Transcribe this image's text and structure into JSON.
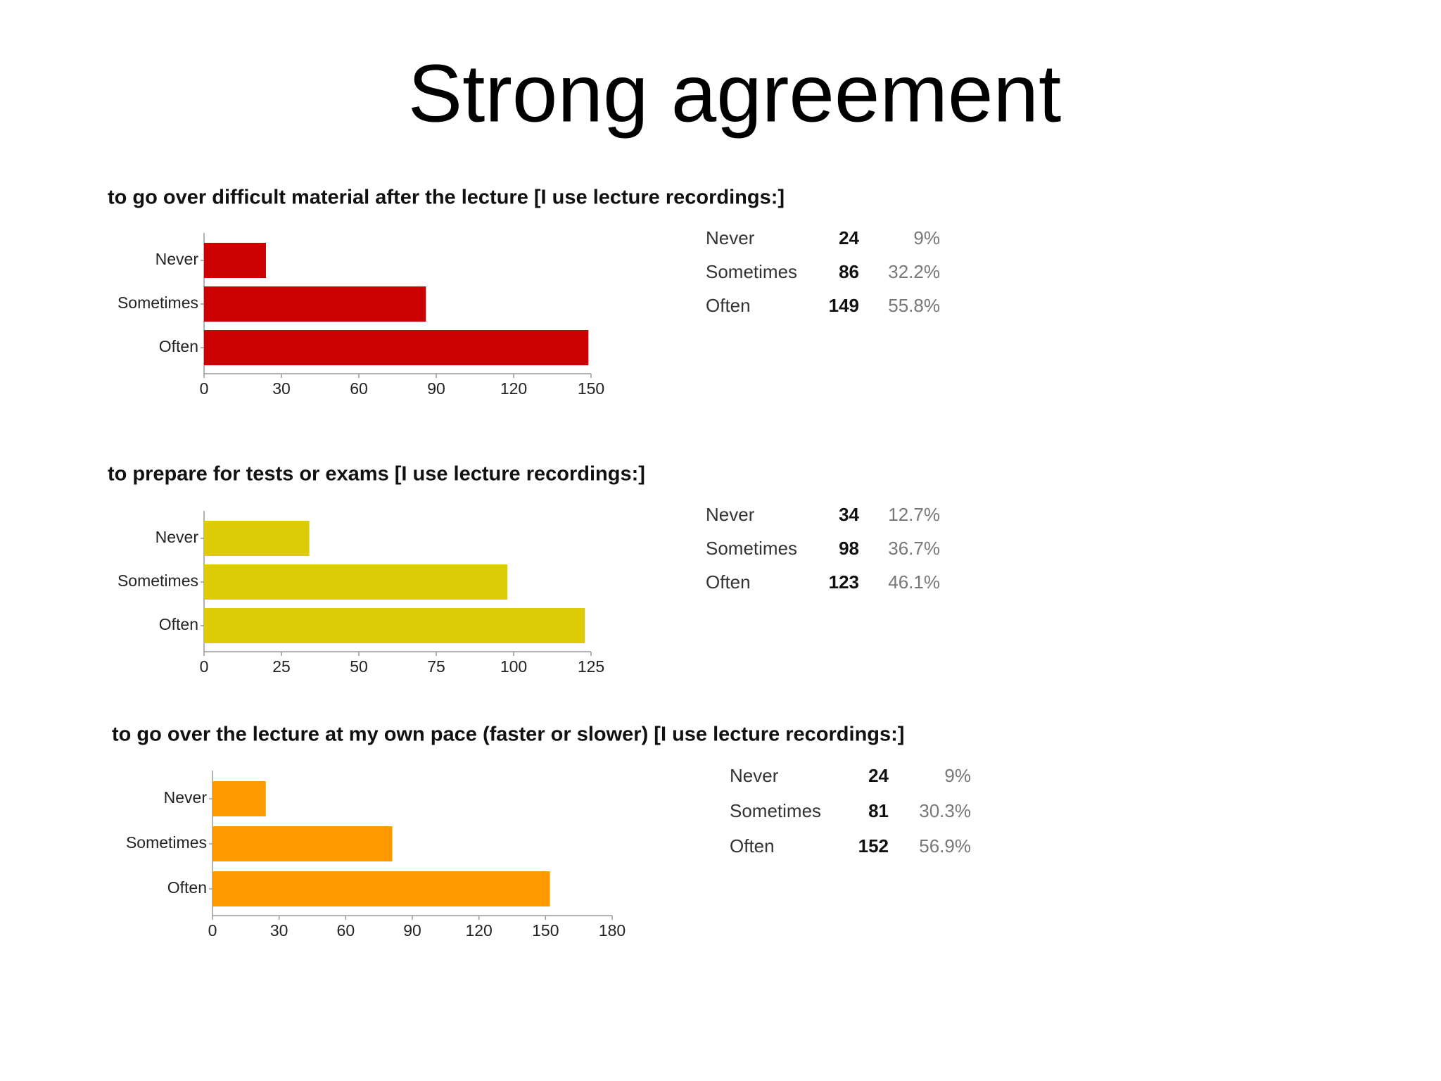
{
  "title": "Strong agreement",
  "chart_data": [
    {
      "type": "bar",
      "title": "to go over difficult material after the lecture [I use lecture recordings:]",
      "categories": [
        "Never",
        "Sometimes",
        "Often"
      ],
      "values": [
        24,
        86,
        149
      ],
      "shares": [
        "9%",
        "32.2%",
        "55.8%"
      ],
      "color": "#cc0000",
      "xlim": [
        0,
        150
      ],
      "xticks": [
        0,
        30,
        60,
        90,
        120,
        150
      ]
    },
    {
      "type": "bar",
      "title": "to prepare for tests or exams [I use lecture recordings:]",
      "categories": [
        "Never",
        "Sometimes",
        "Often"
      ],
      "values": [
        34,
        98,
        123
      ],
      "shares": [
        "12.7%",
        "36.7%",
        "46.1%"
      ],
      "color": "#dccb05",
      "xlim": [
        0,
        125
      ],
      "xticks": [
        0,
        25,
        50,
        75,
        100,
        125
      ]
    },
    {
      "type": "bar",
      "title": "to go over the lecture at my own pace (faster or slower) [I use lecture recordings:]",
      "categories": [
        "Never",
        "Sometimes",
        "Often"
      ],
      "values": [
        24,
        81,
        152
      ],
      "shares": [
        "9%",
        "30.3%",
        "56.9%"
      ],
      "color": "#ff9900",
      "xlim": [
        0,
        180
      ],
      "xticks": [
        0,
        30,
        60,
        90,
        120,
        150,
        180
      ]
    }
  ]
}
